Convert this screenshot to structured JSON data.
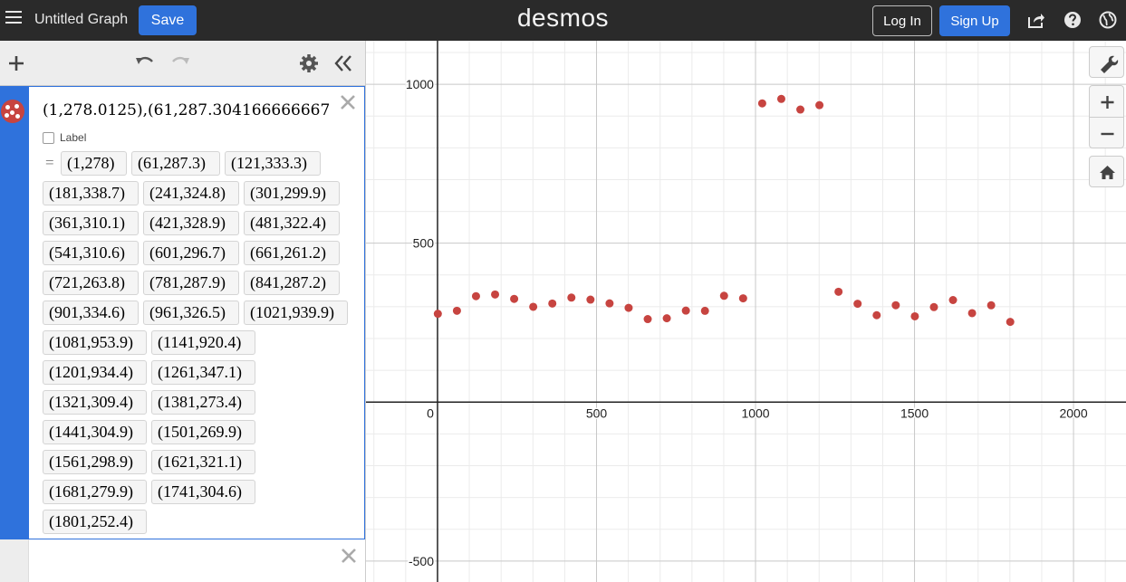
{
  "header": {
    "title": "Untitled Graph",
    "save_label": "Save",
    "logo": "desmos",
    "login_label": "Log In",
    "signup_label": "Sign Up"
  },
  "expression": {
    "input_text": "(1,278.0125),(61,287.304166666667",
    "label_text": "Label",
    "equals": "=",
    "color": "#c74440"
  },
  "points_display": [
    "(1,278)",
    "(61,287.3)",
    "(121,333.3)",
    "(181,338.7)",
    "(241,324.8)",
    "(301,299.9)",
    "(361,310.1)",
    "(421,328.9)",
    "(481,322.4)",
    "(541,310.6)",
    "(601,296.7)",
    "(661,261.2)",
    "(721,263.8)",
    "(781,287.9)",
    "(841,287.2)",
    "(901,334.6)",
    "(961,326.5)",
    "(1021,939.9)",
    "(1081,953.9)",
    "(1141,920.4)",
    "(1201,934.4)",
    "(1261,347.1)",
    "(1321,309.4)",
    "(1381,273.4)",
    "(1441,304.9)",
    "(1501,269.9)",
    "(1561,298.9)",
    "(1621,321.1)",
    "(1681,279.9)",
    "(1741,304.6)",
    "(1801,252.4)"
  ],
  "graph": {
    "x_range": [
      -225,
      2165
    ],
    "y_range": [
      -566,
      1137
    ],
    "x_ticks": [
      "0",
      "500",
      "1000",
      "1500",
      "2000"
    ],
    "y_ticks": [
      "1000",
      "500",
      "-500"
    ],
    "points": [
      [
        1,
        278.0
      ],
      [
        61,
        287.3
      ],
      [
        121,
        333.3
      ],
      [
        181,
        338.7
      ],
      [
        241,
        324.8
      ],
      [
        301,
        299.9
      ],
      [
        361,
        310.1
      ],
      [
        421,
        328.9
      ],
      [
        481,
        322.4
      ],
      [
        541,
        310.6
      ],
      [
        601,
        296.7
      ],
      [
        661,
        261.2
      ],
      [
        721,
        263.8
      ],
      [
        781,
        287.9
      ],
      [
        841,
        287.2
      ],
      [
        901,
        334.6
      ],
      [
        961,
        326.5
      ],
      [
        1021,
        939.9
      ],
      [
        1081,
        953.9
      ],
      [
        1141,
        920.4
      ],
      [
        1201,
        934.4
      ],
      [
        1261,
        347.1
      ],
      [
        1321,
        309.4
      ],
      [
        1381,
        273.4
      ],
      [
        1441,
        304.9
      ],
      [
        1501,
        269.9
      ],
      [
        1561,
        298.9
      ],
      [
        1621,
        321.1
      ],
      [
        1681,
        279.9
      ],
      [
        1741,
        304.6
      ],
      [
        1801,
        252.4
      ]
    ]
  },
  "colors": {
    "header_bg": "#2a2a2a",
    "accent": "#2f72dc",
    "point": "#c74440"
  }
}
